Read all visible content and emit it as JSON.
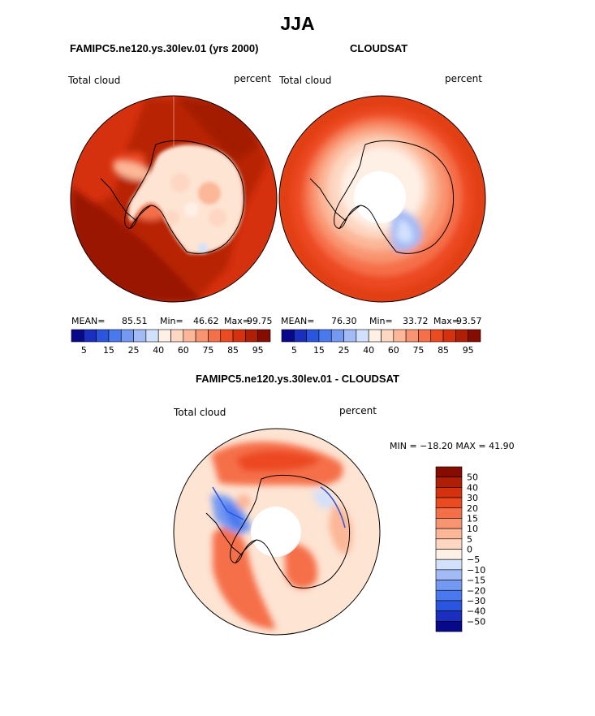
{
  "title": "JJA",
  "panels": [
    {
      "title": "FAMIPC5.ne120.ys.30lev.01 (yrs 2000)",
      "left_label": "Total cloud",
      "right_label": "percent",
      "stats": {
        "mean_label": "MEAN=",
        "mean": "85.51",
        "min_label": "Min=",
        "min": "46.62",
        "max_label": "Max=",
        "max": "99.75"
      }
    },
    {
      "title": "CLOUDSAT",
      "left_label": "Total cloud",
      "right_label": "percent",
      "stats": {
        "mean_label": "MEAN=",
        "mean": "76.30",
        "min_label": "Min=",
        "min": "33.72",
        "max_label": "Max=",
        "max": "93.57"
      }
    },
    {
      "title": "FAMIPC5.ne120.ys.30lev.01 - CLOUDSAT",
      "left_label": "Total cloud",
      "right_label": "percent",
      "minmax": "MIN = −18.20  MAX =   41.90"
    }
  ],
  "colorbar_abs": {
    "colors": [
      "#08088a",
      "#1a2fc0",
      "#2a55e0",
      "#4a78ee",
      "#7499f2",
      "#a2baf6",
      "#d2e1fb",
      "#fff0e6",
      "#fdd7c2",
      "#fbb797",
      "#f99471",
      "#f57048",
      "#ec4a21",
      "#d6310e",
      "#b01f05",
      "#860b00"
    ],
    "labels": [
      "5",
      "15",
      "25",
      "40",
      "60",
      "75",
      "85",
      "95"
    ]
  },
  "colorbar_diff": {
    "colors": [
      "#860b00",
      "#b01f05",
      "#d6310e",
      "#ec4a21",
      "#f57048",
      "#f99471",
      "#fbb797",
      "#fdd7c2",
      "#fff0e6",
      "#d2e1fb",
      "#a2baf6",
      "#7499f2",
      "#4a78ee",
      "#2a55e0",
      "#1a2fc0",
      "#08088a"
    ],
    "labels": [
      "50",
      "40",
      "30",
      "20",
      "15",
      "10",
      "5",
      "0",
      "−5",
      "−10",
      "−15",
      "−20",
      "−30",
      "−40",
      "−50"
    ]
  },
  "chart_data": [
    {
      "type": "heatmap",
      "projection": "south-polar-stereographic",
      "title": "FAMIPC5.ne120.ys.30lev.01 (yrs 2000)",
      "variable": "Total cloud",
      "units": "percent",
      "season": "JJA",
      "mean": 85.51,
      "min": 46.62,
      "max": 99.75,
      "contour_levels": [
        5,
        10,
        15,
        20,
        25,
        30,
        40,
        50,
        60,
        65,
        75,
        80,
        85,
        90,
        95
      ]
    },
    {
      "type": "heatmap",
      "projection": "south-polar-stereographic",
      "title": "CLOUDSAT",
      "variable": "Total cloud",
      "units": "percent",
      "season": "JJA",
      "mean": 76.3,
      "min": 33.72,
      "max": 93.57,
      "contour_levels": [
        5,
        10,
        15,
        20,
        25,
        30,
        40,
        50,
        60,
        65,
        75,
        80,
        85,
        90,
        95
      ]
    },
    {
      "type": "heatmap",
      "projection": "south-polar-stereographic",
      "title": "FAMIPC5.ne120.ys.30lev.01 - CLOUDSAT",
      "variable": "Total cloud",
      "units": "percent",
      "season": "JJA",
      "min": -18.2,
      "max": 41.9,
      "contour_levels": [
        -50,
        -40,
        -30,
        -20,
        -15,
        -10,
        -5,
        0,
        5,
        10,
        15,
        20,
        30,
        40,
        50
      ]
    }
  ]
}
